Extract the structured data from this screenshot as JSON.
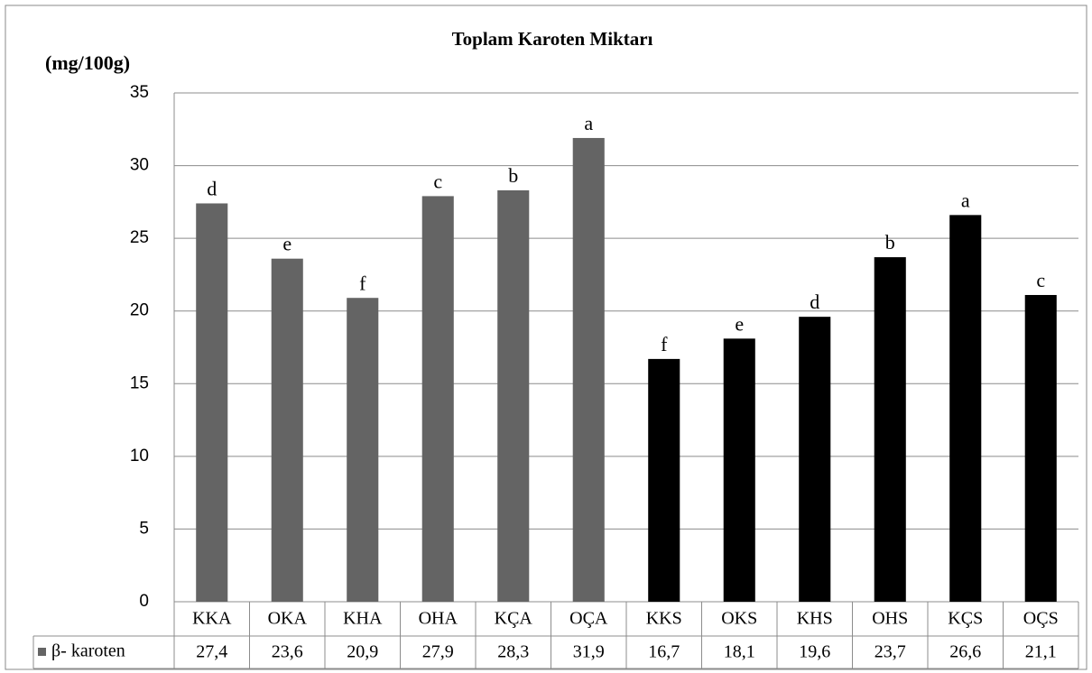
{
  "chart_data": {
    "type": "bar",
    "title": "Toplam Karoten Miktarı",
    "y_label": "(mg/100g)",
    "categories": [
      "KKA",
      "OKA",
      "KHA",
      "OHA",
      "KÇA",
      "OÇA",
      "KKS",
      "OKS",
      "KHS",
      "OHS",
      "KÇS",
      "OÇS"
    ],
    "series": [
      {
        "name": "β- karoten",
        "color": "#646464",
        "values": [
          27.4,
          23.6,
          20.9,
          27.9,
          28.3,
          31.9,
          16.7,
          18.1,
          19.6,
          23.7,
          26.6,
          21.1
        ],
        "value_labels": [
          "27,4",
          "23,6",
          "20,9",
          "27,9",
          "28,3",
          "31,9",
          "16,7",
          "18,1",
          "19,6",
          "23,7",
          "26,6",
          "21,1"
        ]
      }
    ],
    "bar_colors": [
      "#646464",
      "#646464",
      "#646464",
      "#646464",
      "#646464",
      "#646464",
      "#000000",
      "#000000",
      "#000000",
      "#000000",
      "#000000",
      "#000000"
    ],
    "annotations": [
      "d",
      "e",
      "f",
      "c",
      "b",
      "a",
      "f",
      "e",
      "d",
      "b",
      "a",
      "c"
    ],
    "ylim": [
      0,
      35
    ],
    "yticks": [
      0,
      5,
      10,
      15,
      20,
      25,
      30,
      35
    ],
    "grid": true
  }
}
